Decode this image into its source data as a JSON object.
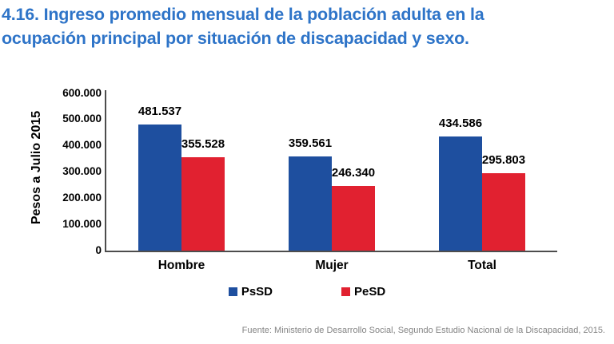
{
  "title": {
    "lines": [
      "4.16. Ingreso promedio mensual de la población adulta en la",
      "ocupación principal por situación de discapacidad y sexo."
    ]
  },
  "chart_data": {
    "type": "bar",
    "title": "4.16. Ingreso promedio mensual de la población adulta en la ocupación principal por situación de discapacidad y sexo.",
    "categories": [
      "Hombre",
      "Mujer",
      "Total"
    ],
    "series": [
      {
        "name": "PsSD",
        "color": "#1E4F9F",
        "values": [
          481537,
          359561,
          434586
        ],
        "labels": [
          "481.537",
          "359.561",
          "434.586"
        ]
      },
      {
        "name": "PeSD",
        "color": "#E12130",
        "values": [
          355528,
          246340,
          295803
        ],
        "labels": [
          "355.528",
          "246.340",
          "295.803"
        ]
      }
    ],
    "xlabel": "",
    "ylabel": "Pesos a Julio 2015",
    "ylim": [
      0,
      600000
    ],
    "ytick_step": 100000,
    "ytick_labels": [
      "0",
      "100.000",
      "200.000",
      "300.000",
      "400.000",
      "500.000",
      "600.000"
    ],
    "grid": false,
    "legend_position": "bottom"
  },
  "footer": {
    "source": "Fuente: Ministerio de Desarrollo Social, Segundo Estudio Nacional de la Discapacidad, 2015."
  },
  "colors": {
    "title_blue": "#2E74C8",
    "axis_gray": "#4D4D4D",
    "footer_gray": "#848484"
  }
}
